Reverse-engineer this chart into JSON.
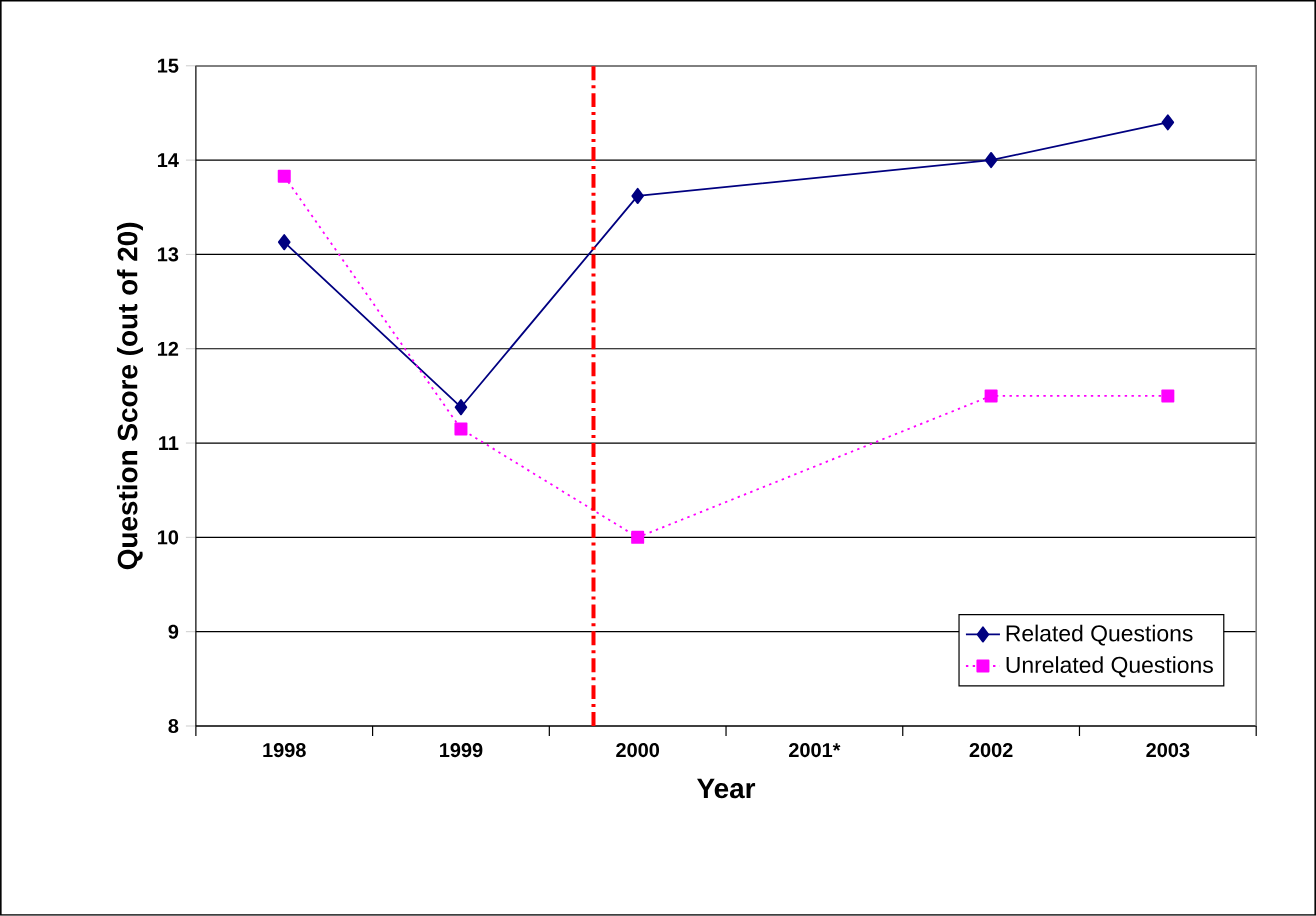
{
  "chart_data": {
    "type": "line",
    "xlabel": "Year",
    "ylabel": "Question Score (out of 20)",
    "x": [
      1998,
      1999,
      2000,
      2001,
      2002,
      2003
    ],
    "series": [
      {
        "name": "Related Questions",
        "color": "#000080",
        "marker": "diamond",
        "line_style": "solid",
        "values": [
          13.13,
          11.38,
          13.62,
          null,
          14.0,
          14.4
        ]
      },
      {
        "name": "Unrelated Questions",
        "color": "#ff00ff",
        "marker": "square",
        "line_style": "dotted",
        "values": [
          13.83,
          11.15,
          10.0,
          null,
          11.5,
          11.5
        ]
      }
    ],
    "xlim": [
      1997.5,
      2003.5
    ],
    "xticks": [
      1998,
      1999,
      2000,
      {
        "value": 2001,
        "label": "2001*"
      },
      2002,
      2003,
      {
        "value": 1997.5,
        "label": null
      },
      {
        "value": 1998.5,
        "label": null
      },
      {
        "value": 1999.5,
        "label": null
      },
      {
        "value": 2000.5,
        "label": null
      },
      {
        "value": 2001.5,
        "label": null
      },
      {
        "value": 2002.5,
        "label": null
      },
      {
        "value": 2003.5,
        "label": null
      }
    ],
    "ylim": [
      8,
      15
    ],
    "yticks": [
      8,
      9,
      10,
      11,
      12,
      13,
      14,
      15
    ],
    "ref_lines": [
      {
        "axis": "x",
        "value": 1999.75,
        "color": "#ff0000",
        "line_style": "dashed"
      }
    ],
    "grid": "y",
    "legend": "bottom right"
  }
}
